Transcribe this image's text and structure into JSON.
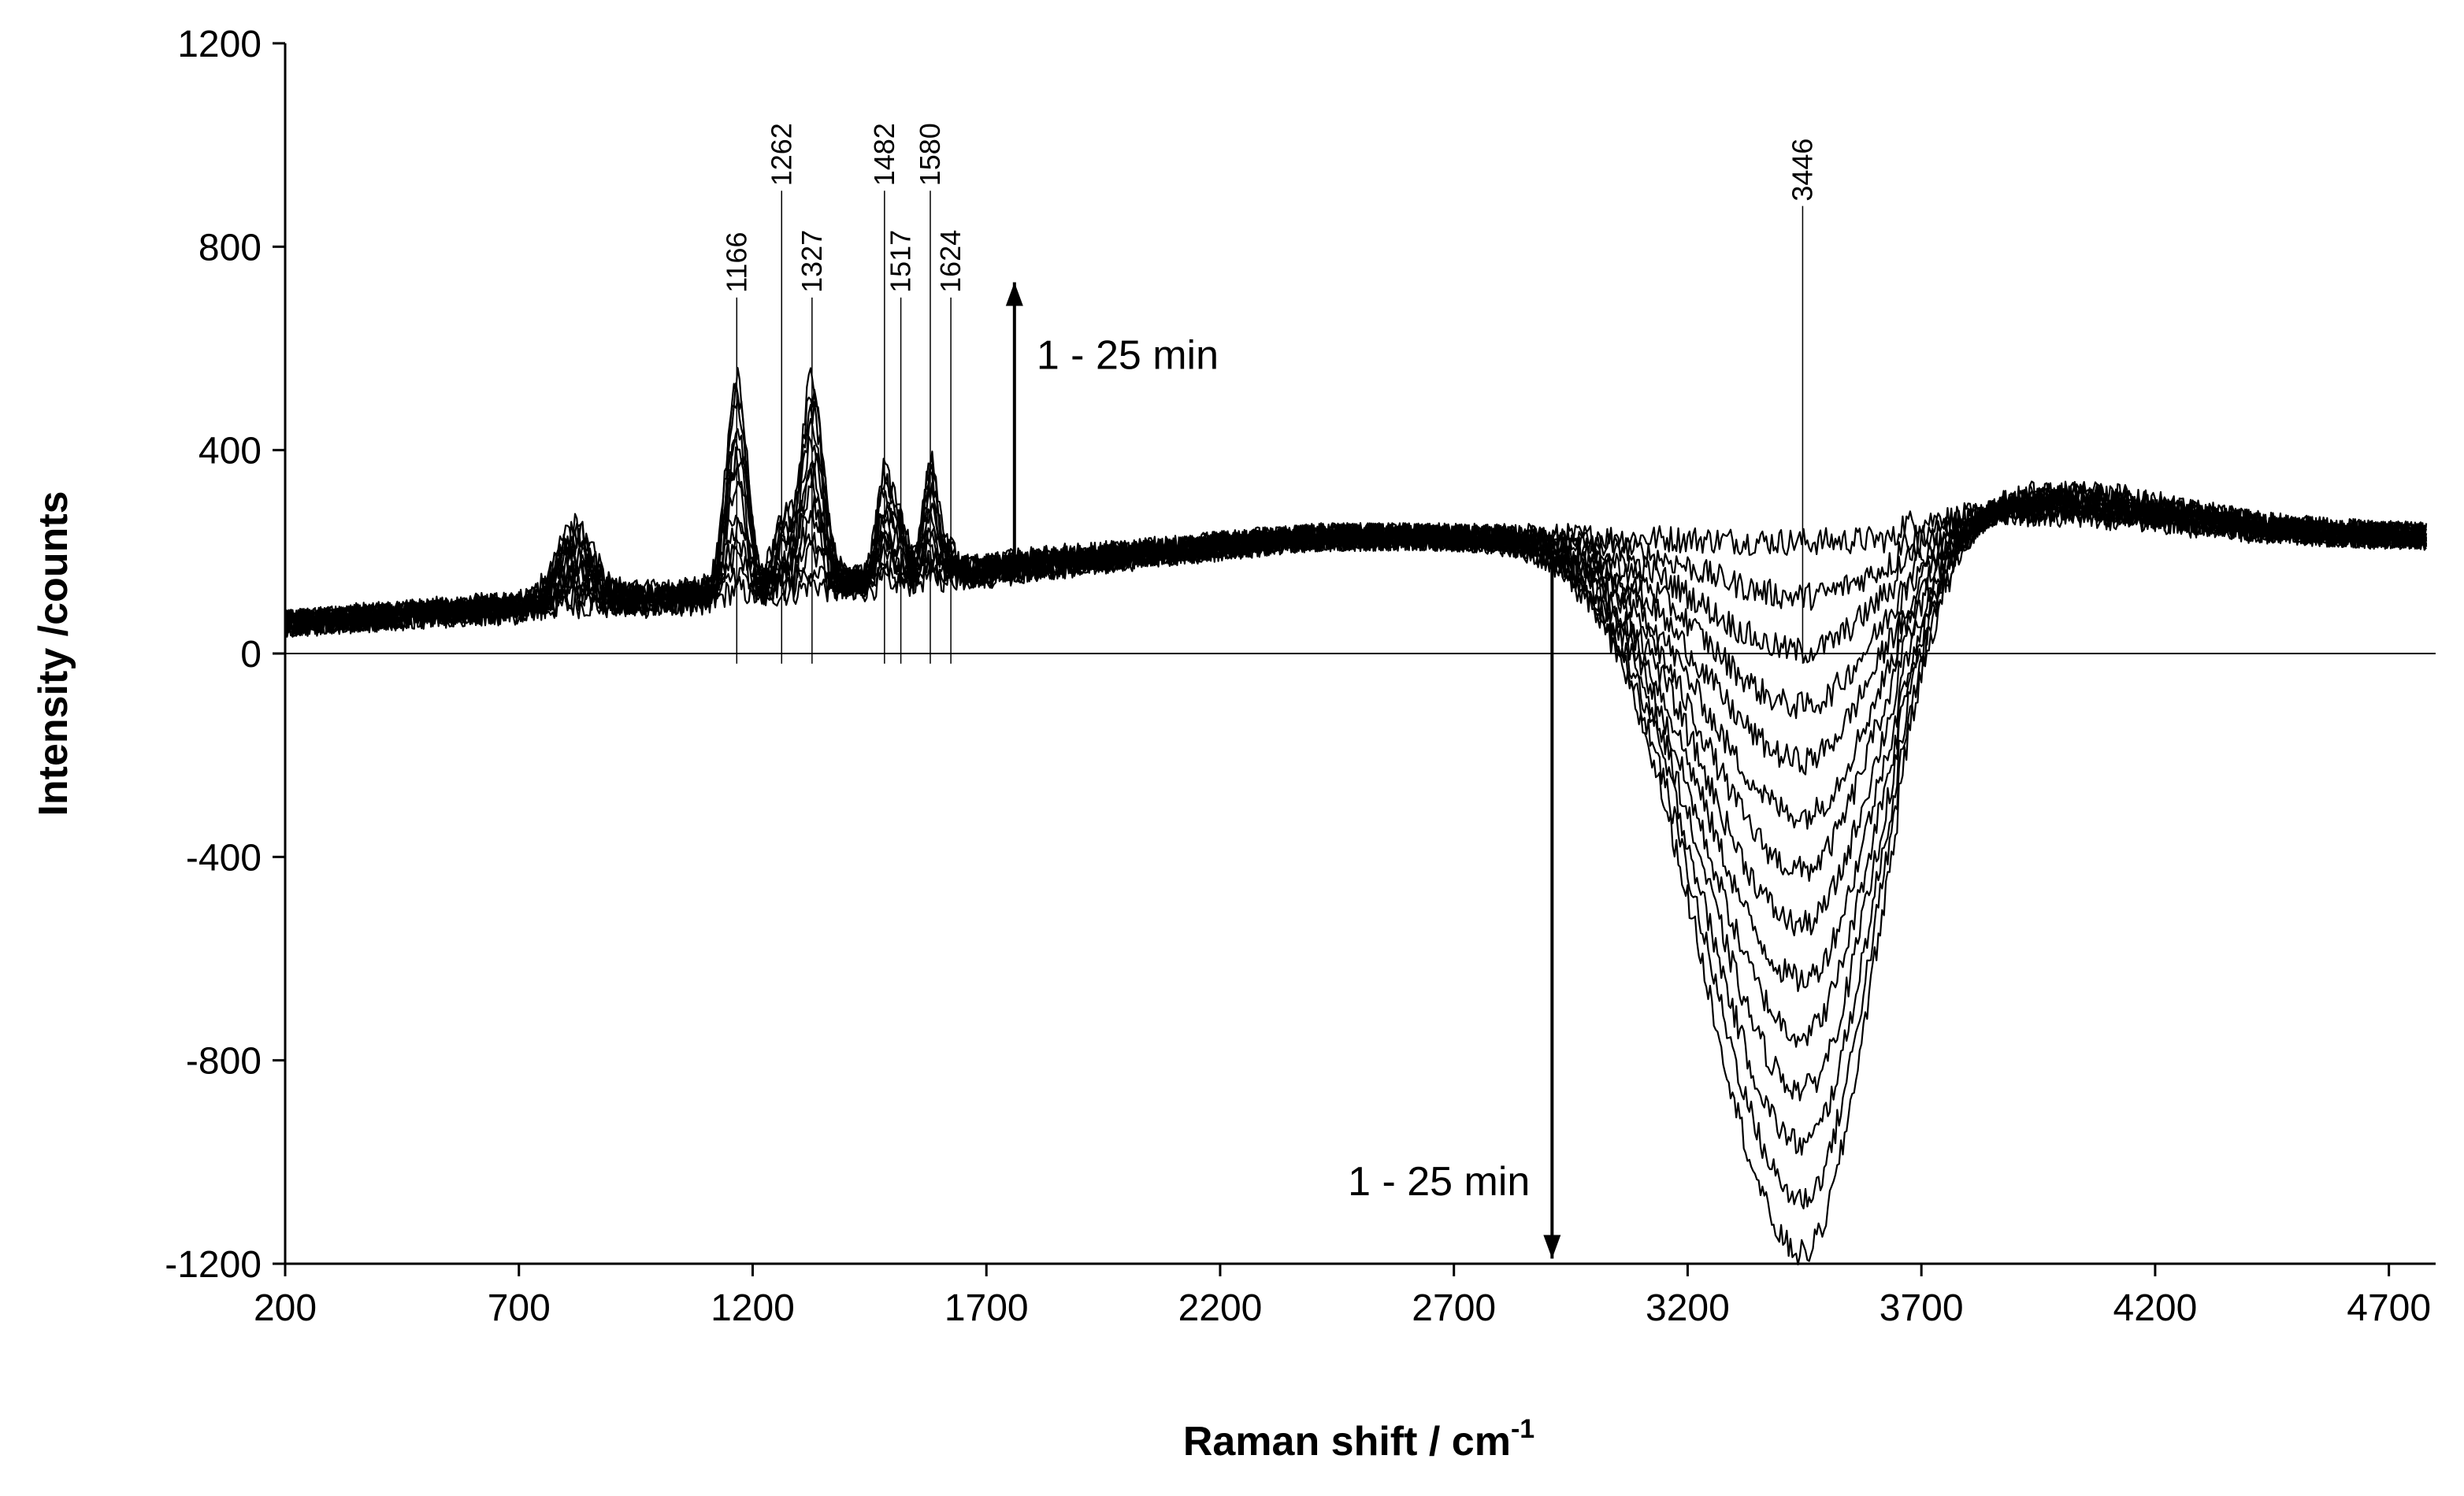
{
  "chart_data": {
    "type": "line",
    "xlabel": "Raman shift / cm",
    "xlabel_superscript": "-1",
    "ylabel": "Intensity /counts",
    "xlim": [
      200,
      4800
    ],
    "ylim": [
      -1200,
      1200
    ],
    "x_ticks": [
      200,
      700,
      1200,
      1700,
      2200,
      2700,
      3200,
      3700,
      4200,
      4700
    ],
    "y_ticks": [
      -1200,
      -800,
      -400,
      0,
      400,
      800,
      1200
    ],
    "grid": false,
    "legend": "none",
    "line_color": "#000000",
    "peak_labels": [
      {
        "text": "1166",
        "x": 1166,
        "label_y": 700
      },
      {
        "text": "1262",
        "x": 1262,
        "label_y": 910
      },
      {
        "text": "1327",
        "x": 1327,
        "label_y": 700
      },
      {
        "text": "1482",
        "x": 1482,
        "label_y": 910
      },
      {
        "text": "1517",
        "x": 1517,
        "label_y": 700
      },
      {
        "text": "1580",
        "x": 1580,
        "label_y": 910
      },
      {
        "text": "1624",
        "x": 1624,
        "label_y": 700
      },
      {
        "text": "3446",
        "x": 3446,
        "label_y": 880
      }
    ],
    "annotations": [
      {
        "text": "1 - 25 min",
        "arrow": "up",
        "arrow_x": 1760,
        "arrow_from": 180,
        "arrow_to": 730
      },
      {
        "text": "1 - 25 min",
        "arrow": "down",
        "arrow_x": 2910,
        "arrow_from": 200,
        "arrow_to": -1190
      }
    ],
    "series_shape": {
      "count": 14,
      "baseline_low": 60,
      "baseline_high": 230,
      "peak_1166_max": 560,
      "peak_1327_max": 540,
      "peak_1482_max": 350,
      "peak_1580_max": 370,
      "trough_3446_min": -1180,
      "trough_3446_max": 220
    }
  }
}
